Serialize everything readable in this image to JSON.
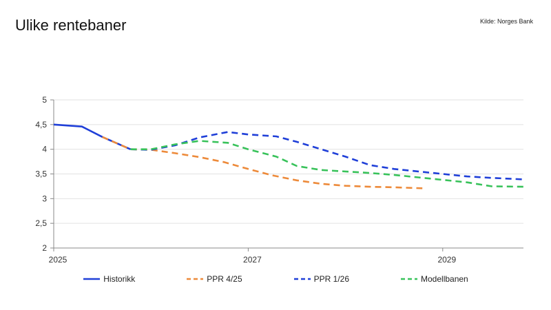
{
  "header": {
    "title": "Ulike rentebaner",
    "source": "Kilde: Norges Bank"
  },
  "chart_data": {
    "type": "line",
    "title": "Ulike rentebaner",
    "xlabel": "",
    "ylabel": "",
    "xlim": [
      2025.0,
      2029.83
    ],
    "ylim": [
      2,
      5
    ],
    "xticks": [
      2025,
      2027,
      2029
    ],
    "xtick_labels": [
      "2025",
      "2027",
      "2029"
    ],
    "yticks": [
      2,
      2.5,
      3,
      3.5,
      4,
      4.5,
      5
    ],
    "ytick_labels": [
      "2",
      "2,5",
      "3",
      "3,5",
      "4",
      "4,5",
      "5"
    ],
    "grid": "horizontal",
    "legend": "bottom",
    "series": [
      {
        "name": "Historikk",
        "color": "#1f3fd8",
        "dash": "solid",
        "x": [
          2025.0,
          2025.29,
          2025.5,
          2025.79
        ],
        "y": [
          4.5,
          4.46,
          4.25,
          4.0
        ]
      },
      {
        "name": "PPR 4/25",
        "color": "#ed8a3a",
        "dash": "dashed",
        "x": [
          2025.5,
          2025.79,
          2026.0,
          2026.25,
          2026.5,
          2026.75,
          2027.0,
          2027.25,
          2027.5,
          2027.75,
          2028.0,
          2028.25,
          2028.5,
          2028.79
        ],
        "y": [
          4.25,
          4.0,
          3.99,
          3.92,
          3.84,
          3.74,
          3.6,
          3.47,
          3.37,
          3.3,
          3.26,
          3.24,
          3.23,
          3.21
        ]
      },
      {
        "name": "PPR 1/26",
        "color": "#1f3fd8",
        "dash": "dashed",
        "x": [
          2025.79,
          2026.0,
          2026.25,
          2026.5,
          2026.79,
          2027.0,
          2027.29,
          2027.5,
          2027.75,
          2028.0,
          2028.25,
          2028.5,
          2028.75,
          2029.0,
          2029.25,
          2029.5,
          2029.83
        ],
        "y": [
          4.0,
          3.99,
          4.08,
          4.24,
          4.35,
          4.3,
          4.26,
          4.15,
          4.0,
          3.85,
          3.68,
          3.6,
          3.55,
          3.5,
          3.45,
          3.42,
          3.39
        ]
      },
      {
        "name": "Modellbanen",
        "color": "#38c25a",
        "dash": "dashed",
        "x": [
          2025.79,
          2026.0,
          2026.25,
          2026.5,
          2026.79,
          2027.0,
          2027.29,
          2027.5,
          2027.75,
          2028.0,
          2028.25,
          2028.5,
          2028.75,
          2029.0,
          2029.25,
          2029.5,
          2029.83
        ],
        "y": [
          4.0,
          4.0,
          4.1,
          4.17,
          4.13,
          4.0,
          3.85,
          3.66,
          3.58,
          3.55,
          3.52,
          3.48,
          3.43,
          3.38,
          3.33,
          3.25,
          3.24
        ]
      }
    ]
  }
}
